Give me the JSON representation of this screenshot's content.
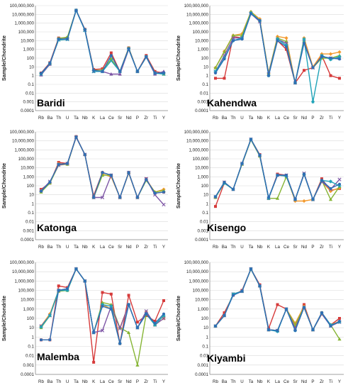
{
  "colors": {
    "blue": "#2e6fb5",
    "red": "#d63a3a",
    "green": "#86b535",
    "purple": "#7e56a6",
    "teal": "#1fa3b8",
    "orange": "#f39a2e"
  },
  "chart_data": [
    {
      "type": "line",
      "title": "Baridi",
      "ylabel": "Sample/Chondrite",
      "categories": [
        "Rb",
        "Ba",
        "Th",
        "U",
        "Ta",
        "Nb",
        "K",
        "La",
        "Ce",
        "Sr",
        "Nd",
        "P",
        "Zr",
        "Ti",
        "Y"
      ],
      "yscale": "log",
      "ylim": [
        0.0001,
        100000000
      ],
      "yticks": [
        "0.0001",
        "0.001",
        "0.01",
        "0.1",
        "1",
        "10",
        "100",
        "1,000",
        "10,000",
        "100,000",
        "1,000,000",
        "10,000,000",
        "100,000,000"
      ],
      "series": [
        {
          "color": "red",
          "values": [
            2,
            30,
            20000,
            20000,
            30000000,
            200000,
            5,
            6,
            400,
            3,
            1500,
            3,
            200,
            3,
            2
          ]
        },
        {
          "color": "green",
          "values": [
            1.5,
            20,
            18000,
            25000,
            30000000,
            180000,
            4,
            4,
            80,
            3,
            1400,
            3,
            150,
            2,
            1.5
          ]
        },
        {
          "color": "purple",
          "values": [
            1.2,
            20,
            15000,
            15000,
            30000000,
            160000,
            3,
            3,
            1.5,
            1.5,
            1000,
            3,
            130,
            1.5,
            3
          ]
        },
        {
          "color": "teal",
          "values": [
            1.5,
            25,
            12000,
            14000,
            28000000,
            150000,
            3,
            3,
            50,
            3,
            1100,
            3,
            130,
            2,
            1.5
          ]
        },
        {
          "color": "blue",
          "values": [
            1.8,
            25,
            15000,
            16000,
            30000000,
            180000,
            4,
            3,
            200,
            3,
            1200,
            3,
            150,
            2,
            2
          ]
        }
      ]
    },
    {
      "type": "line",
      "title": "Kahendwa",
      "ylabel": "Sample/Chondrite",
      "categories": [
        "Rb",
        "Ba",
        "Th",
        "U",
        "Ta",
        "Nb",
        "K",
        "La",
        "Ce",
        "Sr",
        "Nd",
        "P",
        "Zr",
        "Ti",
        "Y"
      ],
      "yscale": "log",
      "ylim": [
        0.0001,
        100000000
      ],
      "yticks": [
        "0.0001",
        "0.001",
        "0.01",
        "0.1",
        "1",
        "10",
        "100",
        "1,000",
        "10,000",
        "100,000",
        "1,000,000",
        "10,000,000",
        "100,000,000"
      ],
      "series": [
        {
          "color": "red",
          "values": [
            0.5,
            0.5,
            30000,
            20000,
            12000000,
            2000000,
            1.5,
            10000,
            1000,
            0.15,
            4,
            8,
            200,
            1,
            0.5
          ]
        },
        {
          "color": "orange",
          "values": [
            8,
            600,
            40000,
            60000,
            20000000,
            3000000,
            2,
            30000,
            20000,
            0.15,
            20000,
            10,
            300,
            300,
            500
          ]
        },
        {
          "color": "green",
          "values": [
            8,
            500,
            40000,
            40000,
            20000000,
            2000000,
            2,
            20000,
            8000,
            0.15,
            10000,
            8,
            100,
            100,
            200
          ]
        },
        {
          "color": "purple",
          "values": [
            3,
            200,
            20000,
            20000,
            12000000,
            1500000,
            1.5,
            15000,
            5000,
            0.15,
            8000,
            8,
            150,
            100,
            100
          ]
        },
        {
          "color": "teal",
          "values": [
            3,
            100,
            10000,
            20000,
            15000000,
            2000000,
            1,
            15000,
            3000,
            0.15,
            15000,
            0.001,
            200,
            70,
            150
          ]
        },
        {
          "color": "blue",
          "values": [
            2,
            80,
            10000,
            15000,
            12000000,
            2000000,
            1,
            10000,
            2000,
            0.15,
            5000,
            8,
            150,
            100,
            80
          ]
        }
      ]
    },
    {
      "type": "line",
      "title": "Katonga",
      "ylabel": "Sample/Chondrite",
      "categories": [
        "Rb",
        "Ba",
        "Th",
        "U",
        "Ta",
        "Nb",
        "K",
        "La",
        "Ce",
        "Sr",
        "Nd",
        "P",
        "Zr",
        "Ti",
        "Y"
      ],
      "yscale": "log",
      "ylim": [
        0.0001,
        100000000
      ],
      "yticks": [
        "0.0001",
        "0.001",
        "0.01",
        "0.1",
        "1",
        "10",
        "100",
        "1,000",
        "10,000",
        "100,000",
        "1,000,000",
        "10,000,000",
        "100,000,000"
      ],
      "series": [
        {
          "color": "red",
          "values": [
            40,
            200,
            40000,
            30000,
            30000000,
            300000,
            8,
            3000,
            1500,
            5,
            3000,
            5,
            600,
            15,
            20
          ]
        },
        {
          "color": "orange",
          "values": [
            30,
            200,
            30000,
            25000,
            28000000,
            280000,
            5,
            2000,
            1000,
            5,
            2500,
            5,
            500,
            20,
            40
          ]
        },
        {
          "color": "green",
          "values": [
            20,
            200,
            20000,
            25000,
            25000000,
            300000,
            5,
            1500,
            1500,
            5,
            3000,
            5,
            400,
            20,
            30
          ]
        },
        {
          "color": "purple",
          "values": [
            30,
            300,
            20000,
            30000,
            25000000,
            300000,
            5,
            5,
            1500,
            5,
            3000,
            5,
            600,
            10,
            0.8
          ]
        },
        {
          "color": "blue",
          "values": [
            25,
            250,
            25000,
            30000,
            28000000,
            300000,
            5,
            3000,
            1500,
            5,
            3000,
            5,
            500,
            15,
            20
          ]
        }
      ]
    },
    {
      "type": "line",
      "title": "Kisengo",
      "ylabel": "Sample/Chondrite",
      "categories": [
        "Rb",
        "Ba",
        "Th",
        "U",
        "Ta",
        "Nb",
        "K",
        "La",
        "Ce",
        "Sr",
        "Nd",
        "P",
        "Zr",
        "Ti",
        "Y"
      ],
      "yscale": "log",
      "ylim": [
        0.0001,
        100000000
      ],
      "yticks": [
        "0.0001",
        "0.001",
        "0.01",
        "0.1",
        "1",
        "10",
        "100",
        "1,000",
        "10,000",
        "100,000",
        "1,000,000",
        "10,000,000",
        "100,000,000"
      ],
      "series": [
        {
          "color": "red",
          "values": [
            0.5,
            200,
            40,
            30000,
            15000000,
            300000,
            4,
            2000,
            1500,
            3,
            2000,
            3,
            600,
            30,
            50
          ]
        },
        {
          "color": "orange",
          "values": [
            5,
            250,
            40,
            30000,
            15000000,
            250000,
            4,
            1500,
            1200,
            2,
            2,
            3,
            300,
            25,
            60
          ]
        },
        {
          "color": "green",
          "values": [
            5,
            200,
            40,
            25000,
            13000000,
            200000,
            4,
            4,
            1000,
            3,
            2000,
            3,
            400,
            3,
            80
          ]
        },
        {
          "color": "purple",
          "values": [
            6,
            250,
            40,
            30000,
            15000000,
            250000,
            4,
            1500,
            1500,
            3,
            2500,
            3,
            300,
            40,
            500
          ]
        },
        {
          "color": "teal",
          "values": [
            6,
            200,
            40,
            30000,
            15000000,
            250000,
            4,
            1500,
            1200,
            3,
            2000,
            3,
            400,
            300,
            100
          ]
        },
        {
          "color": "blue",
          "values": [
            6,
            250,
            40,
            30000,
            15000000,
            250000,
            5,
            1500,
            1500,
            3,
            2000,
            3,
            400,
            50,
            150
          ]
        }
      ]
    },
    {
      "type": "line",
      "title": "Malemba",
      "ylabel": "Sample/Chondrite",
      "categories": [
        "Rb",
        "Ba",
        "Th",
        "U",
        "Ta",
        "Nb",
        "K",
        "La",
        "Ce",
        "Sr",
        "Nd",
        "P",
        "Zr",
        "Ti",
        "Y"
      ],
      "yscale": "log",
      "ylim": [
        0.0001,
        100000000
      ],
      "yticks": [
        "0.0001",
        "0.001",
        "0.01",
        "0.1",
        "1",
        "10",
        "100",
        "1,000",
        "10,000",
        "100,000",
        "1,000,000",
        "10,000,000",
        "100,000,000"
      ],
      "series": [
        {
          "color": "red",
          "values": [
            0.5,
            0.5,
            300000,
            200000,
            20000000,
            1000000,
            0.002,
            60000,
            40000,
            0.2,
            30000,
            40,
            200,
            50,
            8000
          ]
        },
        {
          "color": "orange",
          "values": [
            15,
            300,
            100000,
            100000,
            20000000,
            1000000,
            3,
            3000,
            1000,
            10,
            3000,
            10,
            500,
            20,
            100
          ]
        },
        {
          "color": "green",
          "values": [
            10,
            200,
            80000,
            100000,
            20000000,
            1000000,
            3,
            5000,
            3000,
            10,
            3,
            0.001,
            300,
            20,
            200
          ]
        },
        {
          "color": "purple",
          "values": [
            15,
            200,
            100000,
            150000,
            20000000,
            1000000,
            3,
            5,
            2000,
            8,
            3000,
            10,
            600,
            20,
            100
          ]
        },
        {
          "color": "teal",
          "values": [
            12,
            200,
            100000,
            100000,
            20000000,
            1000000,
            3,
            3000,
            2000,
            0.2,
            3000,
            10,
            300,
            20,
            200
          ]
        },
        {
          "color": "blue",
          "values": [
            0.5,
            0.5,
            100000,
            150000,
            20000000,
            1000000,
            3,
            2000,
            1000,
            0.2,
            3000,
            10,
            300,
            30,
            300
          ]
        }
      ]
    },
    {
      "type": "line",
      "title": "Kiyambi",
      "ylabel": "Sample/Chondrite",
      "categories": [
        "Rb",
        "Ba",
        "Th",
        "U",
        "Ta",
        "Nb",
        "K",
        "La",
        "Ce",
        "Sr",
        "Nd",
        "P",
        "Zr",
        "Ti",
        "Y"
      ],
      "yscale": "log",
      "ylim": [
        0.0001,
        100000000
      ],
      "yticks": [
        "0.0001",
        "0.001",
        "0.01",
        "0.1",
        "1",
        "10",
        "100",
        "1,000",
        "10,000",
        "100,000",
        "1,000,000",
        "10,000,000",
        "100,000,000"
      ],
      "series": [
        {
          "color": "red",
          "values": [
            15,
            400,
            30000,
            100000,
            20000000,
            400000,
            8,
            3000,
            1000,
            10,
            3000,
            6,
            400,
            20,
            100
          ]
        },
        {
          "color": "orange",
          "values": [
            15,
            200,
            40000,
            80000,
            20000000,
            300000,
            6,
            5,
            1000,
            30,
            2000,
            6,
            300,
            20,
            50
          ]
        },
        {
          "color": "green",
          "values": [
            15,
            200,
            40000,
            80000,
            18000000,
            300000,
            6,
            5,
            1000,
            20,
            1500,
            6,
            300,
            20,
            0.6
          ]
        },
        {
          "color": "purple",
          "values": [
            15,
            200,
            40000,
            80000,
            20000000,
            300000,
            6,
            5,
            1000,
            8,
            1500,
            6,
            300,
            15,
            40
          ]
        },
        {
          "color": "teal",
          "values": [
            15,
            200,
            40000,
            80000,
            20000000,
            300000,
            6,
            4,
            1000,
            5,
            1500,
            6,
            400,
            20,
            40
          ]
        },
        {
          "color": "blue",
          "values": [
            15,
            200,
            30000,
            80000,
            20000000,
            300000,
            6,
            5,
            1000,
            5,
            1500,
            6,
            400,
            15,
            50
          ]
        }
      ]
    }
  ]
}
